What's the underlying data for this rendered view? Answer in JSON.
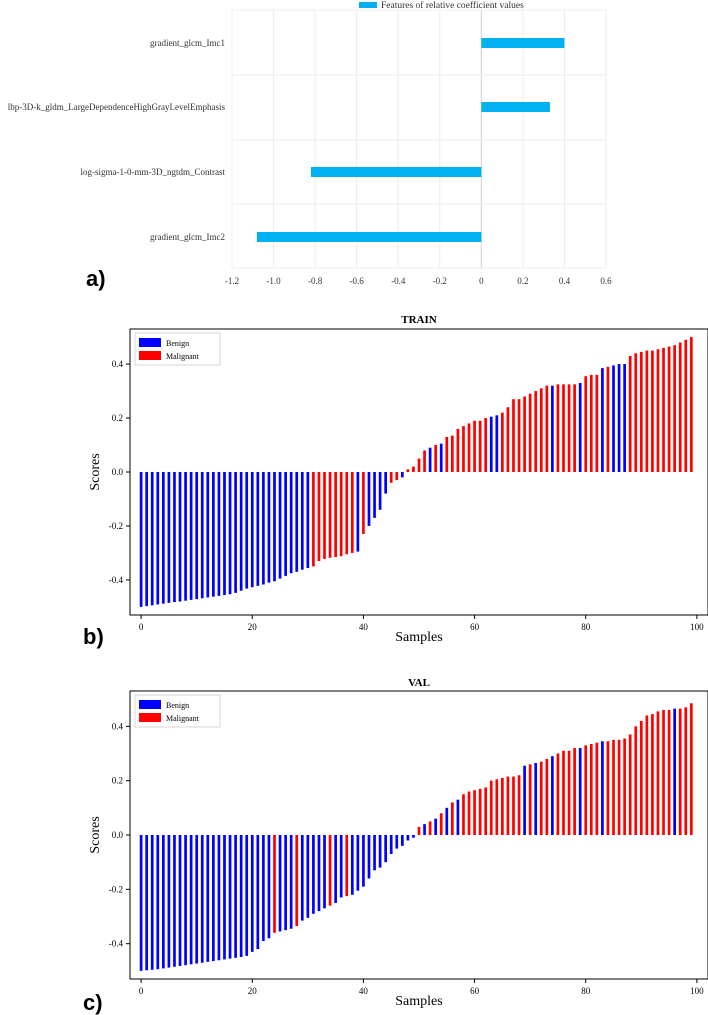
{
  "panel_labels": [
    "a)",
    "b)",
    "c)"
  ],
  "colors": {
    "coef_bar": "#00b0f0",
    "benign": "#0000ff",
    "malignant": "#ff0000"
  },
  "chart_data": [
    {
      "type": "bar",
      "orientation": "horizontal",
      "legend": "Features of relative coefficient values",
      "categories": [
        "gradient_glcm_Imc1",
        "lbp-3D-k_gldm_LargeDependenceHighGrayLevelEmphasis",
        "log-sigma-1-0-mm-3D_ngtdm_Contrast",
        "gradient_glcm_Imc2"
      ],
      "values": [
        0.4,
        0.33,
        -0.82,
        -1.08
      ],
      "xlim": [
        -1.2,
        0.6
      ],
      "xticks": [
        "-1.2",
        "-1.0",
        "-0.8",
        "-0.6",
        "-0.4",
        "-0.2",
        "0",
        "0.2",
        "0.4",
        "0.6"
      ],
      "grid": true
    },
    {
      "type": "bar",
      "title": "TRAIN",
      "xlabel": "Samples",
      "ylabel": "Scores",
      "xlim": [
        -2,
        102
      ],
      "ylim": [
        -0.53,
        0.53
      ],
      "xticks": [
        "0",
        "20",
        "40",
        "60",
        "80",
        "100"
      ],
      "yticks": [
        "-0.4",
        "-0.2",
        "0.0",
        "0.2",
        "0.4"
      ],
      "legend": [
        "Benign",
        "Malignant"
      ],
      "legend_position": "top-left",
      "values": [
        -0.5,
        -0.497,
        -0.494,
        -0.491,
        -0.488,
        -0.485,
        -0.482,
        -0.48,
        -0.477,
        -0.474,
        -0.471,
        -0.468,
        -0.465,
        -0.462,
        -0.459,
        -0.456,
        -0.453,
        -0.448,
        -0.44,
        -0.432,
        -0.427,
        -0.422,
        -0.417,
        -0.41,
        -0.405,
        -0.395,
        -0.385,
        -0.375,
        -0.37,
        -0.362,
        -0.356,
        -0.35,
        -0.33,
        -0.322,
        -0.318,
        -0.315,
        -0.312,
        -0.305,
        -0.3,
        -0.295,
        -0.23,
        -0.2,
        -0.17,
        -0.14,
        -0.08,
        -0.04,
        -0.03,
        -0.02,
        0.01,
        0.02,
        0.05,
        0.08,
        0.09,
        0.1,
        0.105,
        0.13,
        0.135,
        0.16,
        0.17,
        0.18,
        0.19,
        0.19,
        0.2,
        0.205,
        0.21,
        0.22,
        0.24,
        0.27,
        0.27,
        0.28,
        0.29,
        0.3,
        0.31,
        0.32,
        0.32,
        0.325,
        0.325,
        0.325,
        0.325,
        0.33,
        0.355,
        0.36,
        0.36,
        0.385,
        0.39,
        0.395,
        0.4,
        0.4,
        0.43,
        0.44,
        0.445,
        0.45,
        0.45,
        0.455,
        0.46,
        0.465,
        0.47,
        0.48,
        0.49,
        0.5
      ],
      "labels": [
        "B",
        "B",
        "B",
        "B",
        "B",
        "B",
        "B",
        "B",
        "B",
        "B",
        "B",
        "B",
        "B",
        "B",
        "B",
        "B",
        "B",
        "B",
        "B",
        "B",
        "B",
        "B",
        "B",
        "B",
        "B",
        "B",
        "B",
        "B",
        "B",
        "B",
        "B",
        "M",
        "M",
        "M",
        "M",
        "M",
        "M",
        "M",
        "M",
        "B",
        "M",
        "B",
        "B",
        "B",
        "B",
        "M",
        "M",
        "B",
        "M",
        "M",
        "M",
        "M",
        "B",
        "M",
        "B",
        "M",
        "M",
        "M",
        "M",
        "M",
        "M",
        "M",
        "M",
        "B",
        "B",
        "M",
        "M",
        "M",
        "M",
        "M",
        "M",
        "M",
        "M",
        "M",
        "B",
        "M",
        "M",
        "M",
        "M",
        "B",
        "M",
        "M",
        "M",
        "B",
        "M",
        "B",
        "B",
        "B",
        "M",
        "M",
        "M",
        "M",
        "M",
        "M",
        "M",
        "M",
        "M",
        "M",
        "M",
        "M"
      ]
    },
    {
      "type": "bar",
      "title": "VAL",
      "xlabel": "Samples",
      "ylabel": "Scores",
      "xlim": [
        -2,
        102
      ],
      "ylim": [
        -0.53,
        0.53
      ],
      "xticks": [
        "0",
        "20",
        "40",
        "60",
        "80",
        "100"
      ],
      "yticks": [
        "-0.4",
        "-0.2",
        "0.0",
        "0.2",
        "0.4"
      ],
      "legend": [
        "Benign",
        "Malignant"
      ],
      "legend_position": "top-left",
      "values": [
        -0.5,
        -0.498,
        -0.496,
        -0.494,
        -0.491,
        -0.488,
        -0.485,
        -0.482,
        -0.479,
        -0.476,
        -0.473,
        -0.47,
        -0.467,
        -0.464,
        -0.461,
        -0.458,
        -0.455,
        -0.452,
        -0.449,
        -0.445,
        -0.43,
        -0.42,
        -0.39,
        -0.38,
        -0.36,
        -0.355,
        -0.35,
        -0.345,
        -0.335,
        -0.315,
        -0.305,
        -0.29,
        -0.28,
        -0.27,
        -0.26,
        -0.25,
        -0.23,
        -0.225,
        -0.22,
        -0.205,
        -0.19,
        -0.16,
        -0.13,
        -0.12,
        -0.1,
        -0.07,
        -0.05,
        -0.04,
        -0.02,
        -0.01,
        0.03,
        0.04,
        0.05,
        0.06,
        0.08,
        0.1,
        0.12,
        0.13,
        0.15,
        0.16,
        0.165,
        0.17,
        0.175,
        0.2,
        0.205,
        0.21,
        0.215,
        0.215,
        0.22,
        0.255,
        0.26,
        0.265,
        0.27,
        0.28,
        0.29,
        0.3,
        0.31,
        0.31,
        0.32,
        0.32,
        0.33,
        0.335,
        0.34,
        0.345,
        0.345,
        0.35,
        0.35,
        0.355,
        0.37,
        0.4,
        0.42,
        0.44,
        0.445,
        0.455,
        0.46,
        0.46,
        0.465,
        0.465,
        0.47,
        0.485
      ],
      "labels": [
        "B",
        "B",
        "B",
        "B",
        "B",
        "B",
        "B",
        "B",
        "B",
        "B",
        "B",
        "B",
        "B",
        "B",
        "B",
        "B",
        "B",
        "B",
        "B",
        "B",
        "B",
        "B",
        "B",
        "B",
        "M",
        "B",
        "B",
        "B",
        "M",
        "B",
        "B",
        "B",
        "B",
        "B",
        "M",
        "B",
        "B",
        "M",
        "B",
        "B",
        "B",
        "B",
        "B",
        "B",
        "B",
        "B",
        "B",
        "B",
        "B",
        "B",
        "M",
        "B",
        "M",
        "B",
        "M",
        "B",
        "M",
        "B",
        "M",
        "M",
        "M",
        "M",
        "M",
        "M",
        "M",
        "M",
        "M",
        "M",
        "M",
        "B",
        "M",
        "B",
        "M",
        "M",
        "B",
        "M",
        "M",
        "M",
        "M",
        "B",
        "M",
        "M",
        "M",
        "B",
        "M",
        "M",
        "M",
        "M",
        "M",
        "M",
        "M",
        "M",
        "M",
        "M",
        "M",
        "M",
        "B",
        "M",
        "M",
        "M"
      ]
    }
  ]
}
